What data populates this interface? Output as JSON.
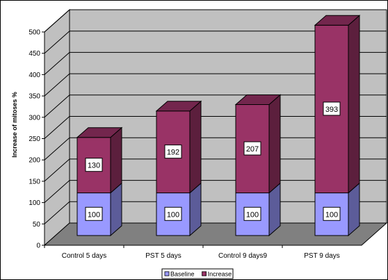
{
  "chart_data": {
    "type": "bar",
    "stacked": true,
    "three_d": true,
    "categories": [
      "Control 5 days",
      "PST 5 days",
      "Control 9 days9",
      "PST 9 days"
    ],
    "series": [
      {
        "name": "Baseline",
        "values": [
          100,
          100,
          100,
          100
        ],
        "color": "#9999ff"
      },
      {
        "name": "Increase",
        "values": [
          130,
          192,
          207,
          393
        ],
        "color": "#993366"
      }
    ],
    "ylabel": "Increase of mitoses %",
    "xlabel": "",
    "ylim": [
      0,
      500
    ],
    "yticks": [
      0,
      50,
      100,
      150,
      200,
      250,
      300,
      350,
      400,
      450,
      500
    ],
    "grid": true,
    "wall_color": "#c0c0c0",
    "floor_color": "#808080",
    "legend_position": "bottom"
  }
}
